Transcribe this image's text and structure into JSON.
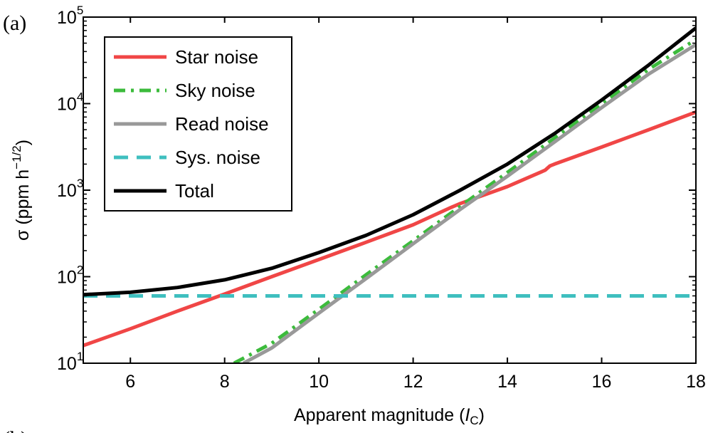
{
  "panel_labels": [
    "(a)",
    "(b)"
  ],
  "chart_data": {
    "type": "line",
    "title": "",
    "xlabel": "Apparent magnitude (",
    "xlabel_italic": "I",
    "xlabel_sub": "C",
    "xlabel_close": ")",
    "ylabel": "σ (ppm h",
    "ylabel_sup": "−1/2",
    "ylabel_close": ")",
    "xlim": [
      5,
      18
    ],
    "ylim": [
      10,
      100000
    ],
    "yscale": "log",
    "xticks": [
      6,
      8,
      10,
      12,
      14,
      16,
      18
    ],
    "xtick_labels": [
      "6",
      "8",
      "10",
      "12",
      "14",
      "16",
      "18"
    ],
    "yticks": [
      10,
      100,
      1000,
      10000,
      100000
    ],
    "ytick_labels": [
      {
        "base": "10",
        "exp": "1"
      },
      {
        "base": "10",
        "exp": "2"
      },
      {
        "base": "10",
        "exp": "3"
      },
      {
        "base": "10",
        "exp": "4"
      },
      {
        "base": "10",
        "exp": "5"
      }
    ],
    "grid": false,
    "legend_position": "top-left",
    "series": [
      {
        "name": "Star noise",
        "color": "#f04646",
        "dash": "solid",
        "x": [
          5,
          6,
          7,
          8,
          9,
          10,
          11,
          12,
          12.8,
          13,
          14,
          14.8,
          14.9,
          15,
          16,
          17,
          18
        ],
        "y": [
          16,
          25,
          40,
          63,
          100,
          158,
          250,
          398,
          630,
          700,
          1100,
          1700,
          1900,
          2000,
          3150,
          5000,
          8000
        ]
      },
      {
        "name": "Sky noise",
        "color": "#3cbb3c",
        "dash": "dashdot",
        "x": [
          8.2,
          9,
          10,
          11,
          12,
          13,
          14,
          15,
          16,
          17,
          18
        ],
        "y": [
          10,
          17,
          42,
          105,
          260,
          650,
          1600,
          4000,
          10000,
          25000,
          55000
        ]
      },
      {
        "name": "Read noise",
        "color": "#999999",
        "dash": "solid",
        "x": [
          8.4,
          9,
          10,
          11,
          12,
          13,
          14,
          15,
          16,
          17,
          18
        ],
        "y": [
          10,
          15,
          38,
          95,
          240,
          600,
          1450,
          3600,
          9000,
          22000,
          48000
        ]
      },
      {
        "name": "Sys. noise",
        "color": "#3fbfbf",
        "dash": "dashed",
        "x": [
          5,
          18
        ],
        "y": [
          60,
          60
        ]
      },
      {
        "name": "Total",
        "color": "#000000",
        "dash": "solid",
        "x": [
          5,
          6,
          7,
          8,
          9,
          10,
          11,
          12,
          13,
          14,
          15,
          16,
          17,
          18
        ],
        "y": [
          62,
          66,
          75,
          92,
          125,
          190,
          300,
          520,
          1000,
          2000,
          4500,
          11000,
          28000,
          75000
        ]
      }
    ]
  }
}
